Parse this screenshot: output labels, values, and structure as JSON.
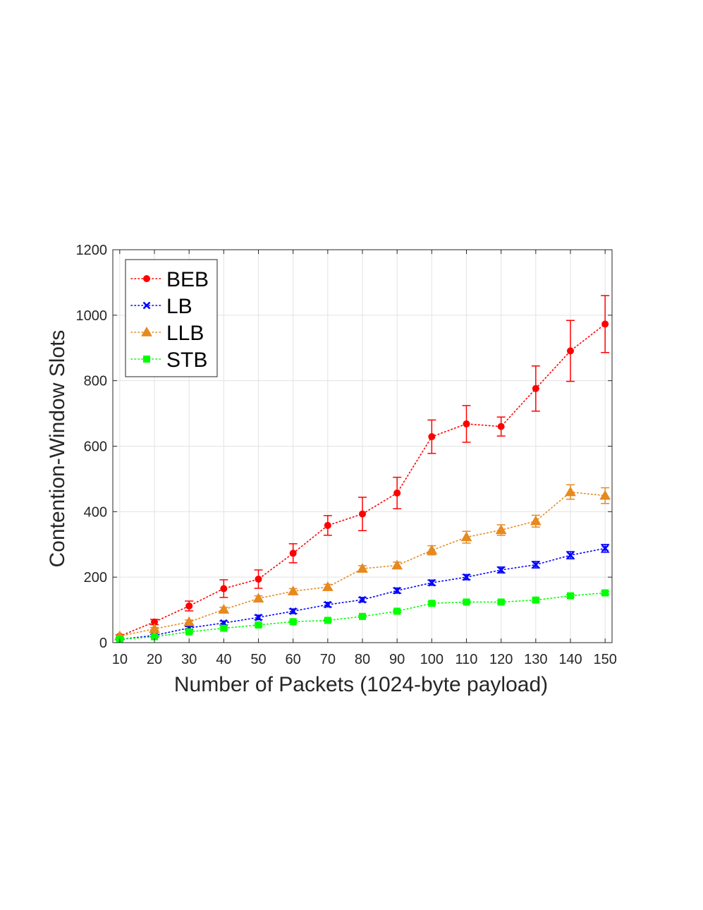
{
  "chart_data": {
    "type": "line",
    "title": "",
    "xlabel": "Number of Packets (1024-byte payload)",
    "ylabel": "Contention-Window Slots",
    "x": [
      10,
      20,
      30,
      40,
      50,
      60,
      70,
      80,
      90,
      100,
      110,
      120,
      130,
      140,
      150
    ],
    "xticks": [
      "10",
      "20",
      "30",
      "40",
      "50",
      "60",
      "70",
      "80",
      "90",
      "100",
      "110",
      "120",
      "130",
      "140",
      "150"
    ],
    "yticks": [
      "0",
      "200",
      "400",
      "600",
      "800",
      "1000",
      "1200"
    ],
    "xlim": [
      8,
      152
    ],
    "ylim": [
      0,
      1200
    ],
    "grid": true,
    "legend_position": "top-left",
    "series": [
      {
        "name": "BEB",
        "color": "#ff0000",
        "marker": "circle",
        "values": [
          20,
          63,
          112,
          165,
          194,
          273,
          358,
          393,
          457,
          629,
          668,
          660,
          776,
          891,
          973
        ],
        "errors": [
          4,
          8,
          15,
          27,
          28,
          29,
          30,
          51,
          48,
          51,
          56,
          29,
          69,
          93,
          87
        ]
      },
      {
        "name": "LB",
        "color": "#0000ff",
        "marker": "x",
        "values": [
          10,
          22,
          45,
          60,
          77,
          96,
          116,
          131,
          159,
          183,
          200,
          222,
          238,
          267,
          288
        ],
        "errors": [
          2,
          3,
          4,
          6,
          7,
          7,
          7,
          7,
          8,
          8,
          8,
          9,
          10,
          11,
          12
        ]
      },
      {
        "name": "LLB",
        "color": "#e6891e",
        "marker": "triangle",
        "values": [
          20,
          42,
          63,
          101,
          135,
          157,
          170,
          226,
          236,
          282,
          322,
          344,
          371,
          460,
          449
        ],
        "errors": [
          3,
          4,
          6,
          7,
          8,
          8,
          8,
          9,
          10,
          14,
          18,
          16,
          18,
          22,
          24
        ]
      },
      {
        "name": "STB",
        "color": "#00ff00",
        "marker": "square",
        "values": [
          10,
          18,
          33,
          44,
          54,
          64,
          68,
          80,
          96,
          120,
          124,
          124,
          130,
          143,
          152
        ],
        "errors": [
          1,
          2,
          3,
          3,
          3,
          3,
          3,
          3,
          3,
          4,
          4,
          4,
          4,
          4,
          5
        ]
      }
    ]
  }
}
